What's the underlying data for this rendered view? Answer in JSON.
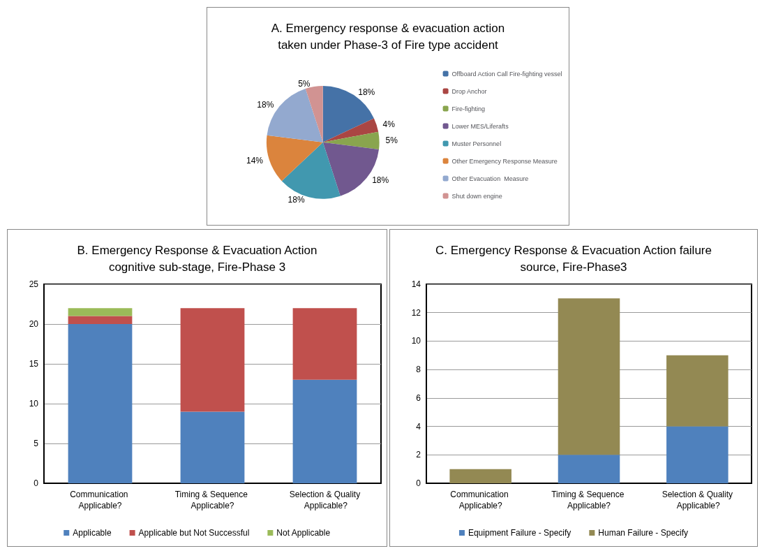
{
  "chart_data": [
    {
      "type": "pie",
      "title": "A. Emergency response & evacuation action\ntaken under Phase-3 of Fire type accident",
      "categories": [
        "Offboard Action Call Fire-fighting vessel",
        "Drop Anchor",
        "Fire-fighting",
        "Lower MES/Liferafts",
        "Muster Personnel",
        "Other Emergency Response Measure",
        "Other Evacuation  Measure",
        "Shut down engine"
      ],
      "values": [
        18,
        4,
        5,
        18,
        18,
        14,
        18,
        5
      ],
      "colors": [
        "#4572a7",
        "#aa4643",
        "#89a54e",
        "#71588f",
        "#4198af",
        "#db843d",
        "#93a9cf",
        "#d19392"
      ],
      "value_labels": [
        "18%",
        "4%",
        "5%",
        "18%",
        "18%",
        "14%",
        "18%",
        "5%"
      ],
      "legend": "right"
    },
    {
      "type": "bar",
      "stacked": true,
      "title": "B. Emergency Response & Evacuation Action\ncognitive sub-stage, Fire-Phase 3",
      "categories": [
        "Communication Applicable?",
        "Timing & Sequence Applicable?",
        "Selection & Quality Applicable?"
      ],
      "series": [
        {
          "name": "Applicable",
          "color": "#4f81bd",
          "values": [
            20,
            9,
            13
          ]
        },
        {
          "name": "Applicable but Not Successful",
          "color": "#c0504d",
          "values": [
            1,
            13,
            9
          ]
        },
        {
          "name": "Not Applicable",
          "color": "#9bbb59",
          "values": [
            1,
            0,
            0
          ]
        }
      ],
      "ylim": [
        0,
        25
      ],
      "yticks": [
        0,
        5,
        10,
        15,
        20,
        25
      ],
      "grid": "y",
      "legend": "bottom"
    },
    {
      "type": "bar",
      "stacked": true,
      "title": "C. Emergency Response & Evacuation Action failure\nsource, Fire-Phase3",
      "categories": [
        "Communication Applicable?",
        "Timing & Sequence Applicable?",
        "Selection & Quality Applicable?"
      ],
      "series": [
        {
          "name": "Equipment Failure - Specify",
          "color": "#4f81bd",
          "values": [
            0,
            2,
            4
          ]
        },
        {
          "name": "Human Failure - Specify",
          "color": "#938953",
          "values": [
            1,
            11,
            5
          ]
        }
      ],
      "ylim": [
        0,
        14
      ],
      "yticks": [
        0,
        2,
        4,
        6,
        8,
        10,
        12,
        14
      ],
      "grid": "y",
      "legend": "bottom"
    }
  ]
}
